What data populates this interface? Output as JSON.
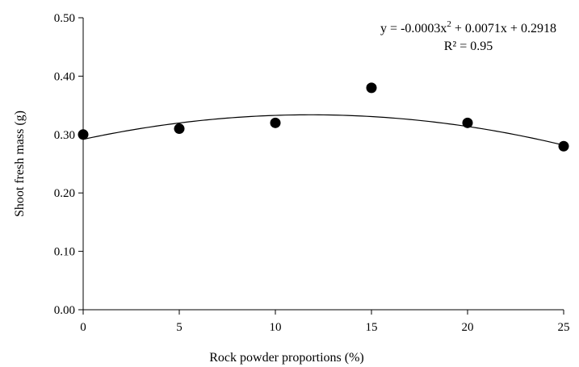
{
  "chart_data": {
    "type": "scatter",
    "xlabel": "Rock powder proportions (%)",
    "ylabel": "Shoot fresh mass (g)",
    "xlim": [
      0,
      25
    ],
    "ylim": [
      0,
      0.5
    ],
    "xticks": [
      "0",
      "5",
      "10",
      "15",
      "20",
      "25"
    ],
    "yticks": [
      "0.00",
      "0.10",
      "0.20",
      "0.30",
      "0.40",
      "0.50"
    ],
    "grid": false,
    "points": [
      {
        "x": 0,
        "y": 0.3
      },
      {
        "x": 5,
        "y": 0.31
      },
      {
        "x": 10,
        "y": 0.32
      },
      {
        "x": 15,
        "y": 0.38
      },
      {
        "x": 20,
        "y": 0.32
      },
      {
        "x": 25,
        "y": 0.28
      }
    ],
    "trendline": {
      "a": -0.0003,
      "b": 0.0071,
      "c": 0.2918,
      "equation_parts": [
        "y = -0.0003x",
        "2",
        " + 0.0071x + 0.2918"
      ],
      "r2_label": "R² = 0.95"
    }
  }
}
